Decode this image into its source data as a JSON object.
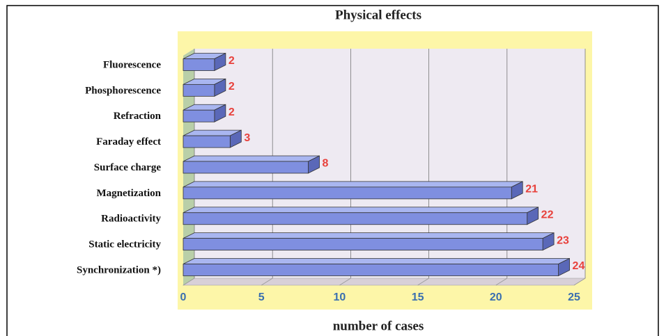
{
  "chart_data": {
    "type": "bar",
    "orientation": "horizontal",
    "title": "Physical effects",
    "xlabel": "number of cases",
    "categories": [
      "Fluorescence",
      "Phosphorescence",
      "Refraction",
      "Faraday effect",
      "Surface charge",
      "Magnetization",
      "Radioactivity",
      "Static electricity",
      "Synchronization *)"
    ],
    "values": [
      2,
      2,
      2,
      3,
      8,
      21,
      22,
      23,
      24
    ],
    "color": "#7f8fe0",
    "label_color": "#e8413c",
    "xlim": [
      0,
      25
    ],
    "xticks": [
      0,
      5,
      10,
      15,
      20,
      25
    ],
    "grid": true
  }
}
